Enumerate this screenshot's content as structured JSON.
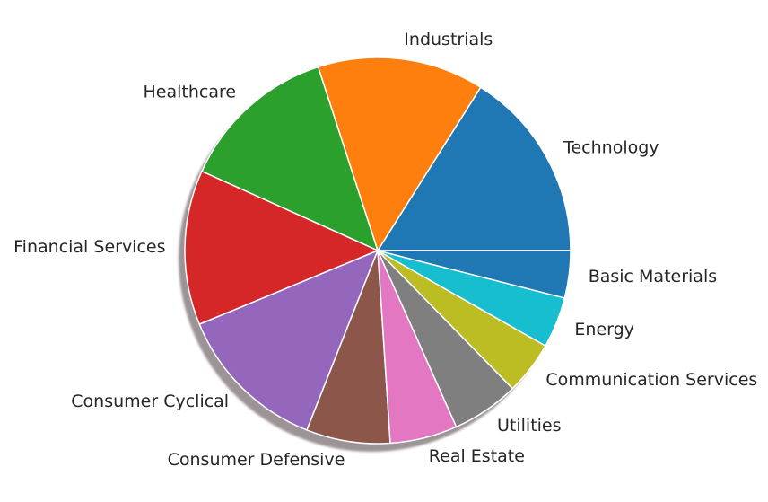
{
  "chart_data": {
    "type": "pie",
    "shadow": true,
    "start_angle_deg": 0,
    "direction": "counterclockwise",
    "slices": [
      {
        "label": "Technology",
        "value": 16.2,
        "color": "#1f77b4"
      },
      {
        "label": "Industrials",
        "value": 14.1,
        "color": "#ff7f0e"
      },
      {
        "label": "Healthcare",
        "value": 13.4,
        "color": "#2ca02c"
      },
      {
        "label": "Financial Services",
        "value": 13.1,
        "color": "#d62728"
      },
      {
        "label": "Consumer Cyclical",
        "value": 12.9,
        "color": "#9467bd"
      },
      {
        "label": "Consumer Defensive",
        "value": 7.1,
        "color": "#8c564b"
      },
      {
        "label": "Real Estate",
        "value": 5.7,
        "color": "#e377c2"
      },
      {
        "label": "Utilities",
        "value": 5.7,
        "color": "#7f7f7f"
      },
      {
        "label": "Communication Services",
        "value": 4.5,
        "color": "#bcbd22"
      },
      {
        "label": "Energy",
        "value": 4.3,
        "color": "#17becf"
      },
      {
        "label": "Basic Materials",
        "value": 4.0,
        "color": "#1f77b4"
      }
    ]
  }
}
